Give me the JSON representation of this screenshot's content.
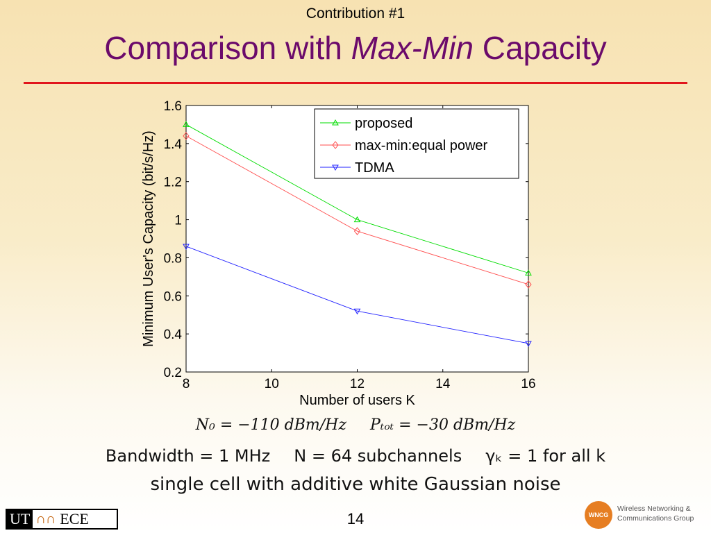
{
  "slide": {
    "subtitle": "Contribution #1",
    "title_pre": "Comparison with ",
    "title_italic": "Max-Min",
    "title_post": " Capacity",
    "page_number": "14"
  },
  "params": {
    "n0": "N₀ = −110 dBm/Hz",
    "ptot": "Pₜₒₜ = −30 dBm/Hz",
    "bandwidth": "Bandwidth = 1 MHz",
    "subchannels": "N = 64 subchannels",
    "gamma": "γₖ = 1 for all k",
    "cell": "single cell with additive white Gaussian noise"
  },
  "logos": {
    "left_ut": "UT",
    "left_horns": "∩∩",
    "left_ece": "ECE",
    "right_badge": "WNCG",
    "right_line1": "Wireless Networking &",
    "right_line2": "Communications Group"
  },
  "colors": {
    "title": "#6b0a6b",
    "rule": "#e1161c",
    "proposed": "#00dd00",
    "maxmin": "#ff4d4d",
    "tdma": "#2222ff"
  },
  "chart_data": {
    "type": "line",
    "xlabel": "Number of users K",
    "ylabel": "Minimum User's Capacity (bit/s/Hz)",
    "xlim": [
      8,
      16
    ],
    "ylim": [
      0.2,
      1.6
    ],
    "xticks": [
      8,
      10,
      12,
      14,
      16
    ],
    "yticks": [
      0.2,
      0.4,
      0.6,
      0.8,
      1,
      1.2,
      1.4,
      1.6
    ],
    "ytick_labels": [
      "0.2",
      "0.4",
      "0.6",
      "0.8",
      "1",
      "1.2",
      "1.4",
      "1.6"
    ],
    "x": [
      8,
      12,
      16
    ],
    "legend_position": "top-right",
    "series": [
      {
        "name": "proposed",
        "values": [
          1.5,
          1.0,
          0.72
        ],
        "color": "#00dd00",
        "marker": "triangle"
      },
      {
        "name": "max-min:equal power",
        "values": [
          1.44,
          0.94,
          0.66
        ],
        "color": "#ff4d4d",
        "marker": "diamond"
      },
      {
        "name": "TDMA",
        "values": [
          0.86,
          0.52,
          0.35
        ],
        "color": "#2222ff",
        "marker": "triangle-down"
      }
    ]
  }
}
